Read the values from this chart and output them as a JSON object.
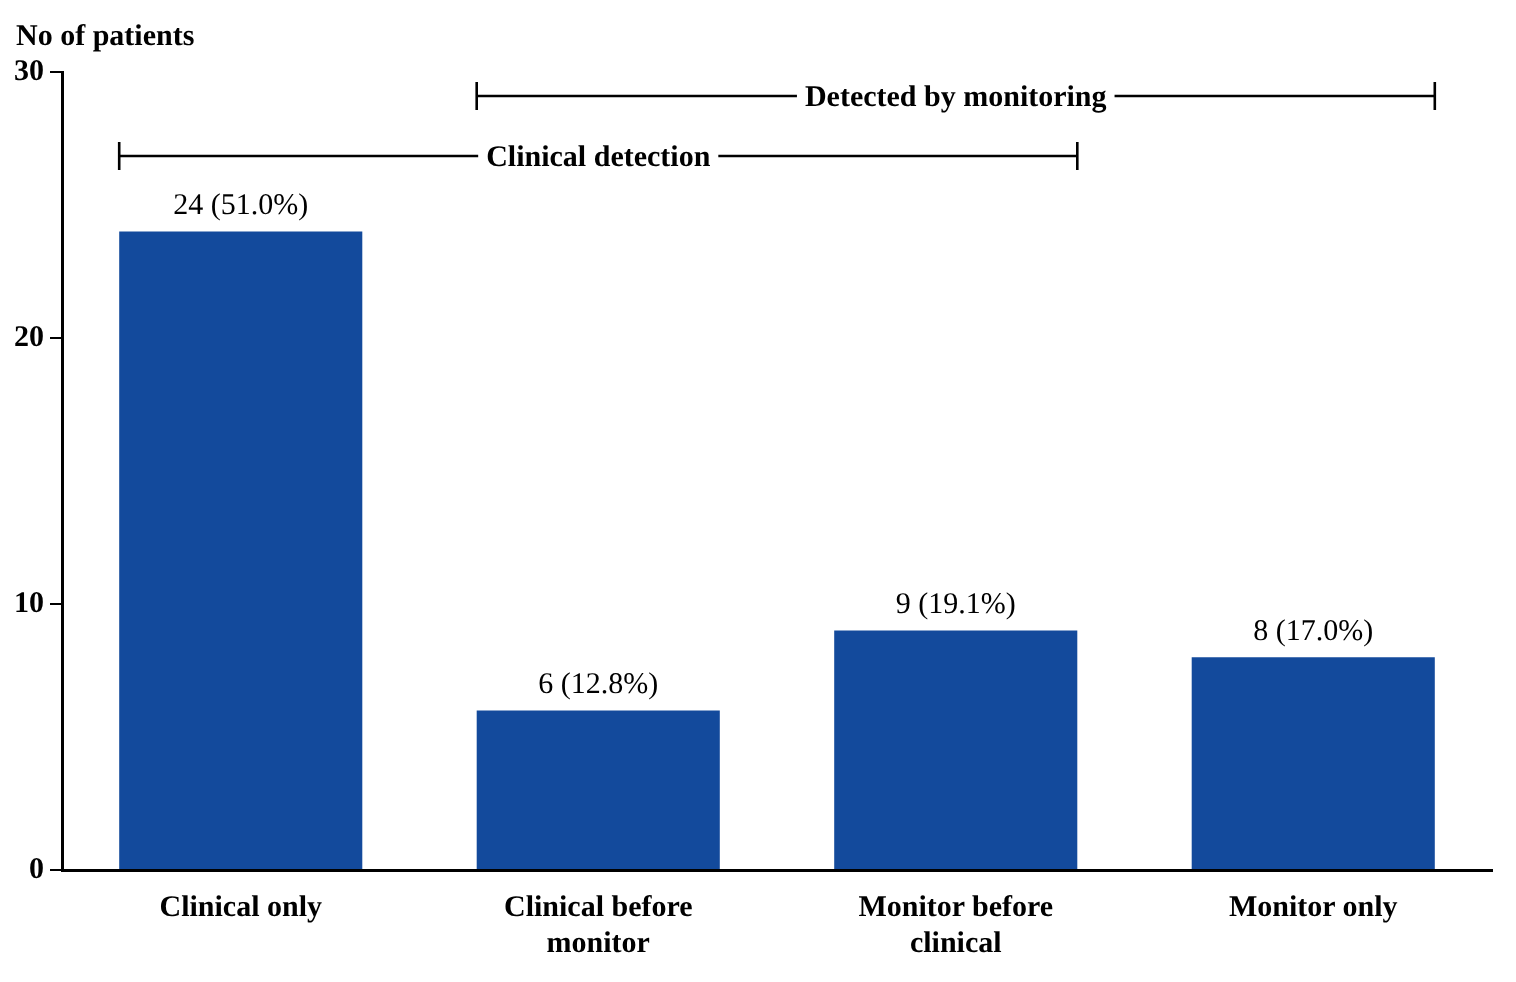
{
  "chart_data": {
    "type": "bar",
    "ylabel": "No of patients",
    "categories": [
      "Clinical only",
      "Clinical before monitor",
      "Monitor before clinical",
      "Monitor only"
    ],
    "values": [
      24,
      6,
      9,
      8
    ],
    "color": "#134a9c",
    "value_labels": [
      "24 (51.0%)",
      "6 (12.8%)",
      "9 (19.1%)",
      "8 (17.0%)"
    ],
    "ylim": [
      0,
      30
    ],
    "yticks": [
      0,
      10,
      20,
      30
    ],
    "grid": false,
    "annotations": [
      "Detected by monitoring",
      "Clinical detection"
    ]
  }
}
